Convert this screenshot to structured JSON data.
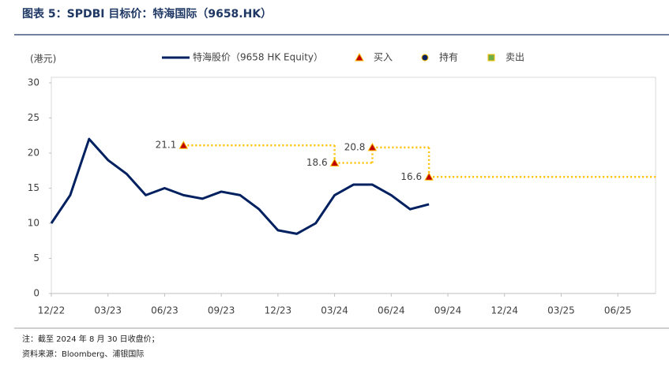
{
  "chart_data": {
    "type": "line",
    "title": "图表 5：SPDBI 目标价：特海国际（9658.HK）",
    "y_label": "(港元)",
    "x": [
      "2022-12",
      "2023-01",
      "2023-02",
      "2023-03",
      "2023-04",
      "2023-05",
      "2023-06",
      "2023-07",
      "2023-08",
      "2023-09",
      "2023-10",
      "2023-11",
      "2023-12",
      "2024-01",
      "2024-02",
      "2024-03",
      "2024-04",
      "2024-05",
      "2024-06",
      "2024-07",
      "2024-08"
    ],
    "series": [
      {
        "name": "特海股价（9658 HK Equity）",
        "color": "#002060",
        "values": [
          10,
          14,
          22,
          19,
          17,
          14,
          15,
          14,
          13.5,
          14.5,
          14,
          12,
          9,
          8.5,
          10,
          14,
          15.5,
          15.5,
          14,
          12,
          12.7
        ]
      }
    ],
    "ratings": [
      {
        "name": "买入",
        "color": "#c00000"
      },
      {
        "name": "持有",
        "color": "#002060"
      },
      {
        "name": "卖出",
        "color": "#70ad47"
      }
    ],
    "targets": {
      "x": [
        "2023-07",
        "2024-03",
        "2024-05",
        "2024-08"
      ],
      "values": [
        21.1,
        18.6,
        20.8,
        16.6
      ],
      "color": "#ffc000"
    },
    "xlim": [
      "2022-12",
      "2025-08"
    ],
    "xticks": [
      {
        "value": "2022-12",
        "label": "12/22"
      },
      {
        "value": "2023-03",
        "label": "03/23"
      },
      {
        "value": "2023-06",
        "label": "06/23"
      },
      {
        "value": "2023-09",
        "label": "09/23"
      },
      {
        "value": "2023-12",
        "label": "12/23"
      },
      {
        "value": "2024-03",
        "label": "03/24"
      },
      {
        "value": "2024-06",
        "label": "06/24"
      },
      {
        "value": "2024-09",
        "label": "09/24"
      },
      {
        "value": "2024-12",
        "label": "12/24"
      },
      {
        "value": "2025-03",
        "label": "03/25"
      },
      {
        "value": "2025-06",
        "label": "06/25"
      }
    ],
    "ylim": [
      0,
      30
    ],
    "yticks": [
      0,
      5,
      10,
      15,
      20,
      25,
      30
    ],
    "notes": [
      "注：截至 2024 年 8 月 30 日收盘价；",
      "资料来源：Bloomberg、浦银国际"
    ]
  }
}
